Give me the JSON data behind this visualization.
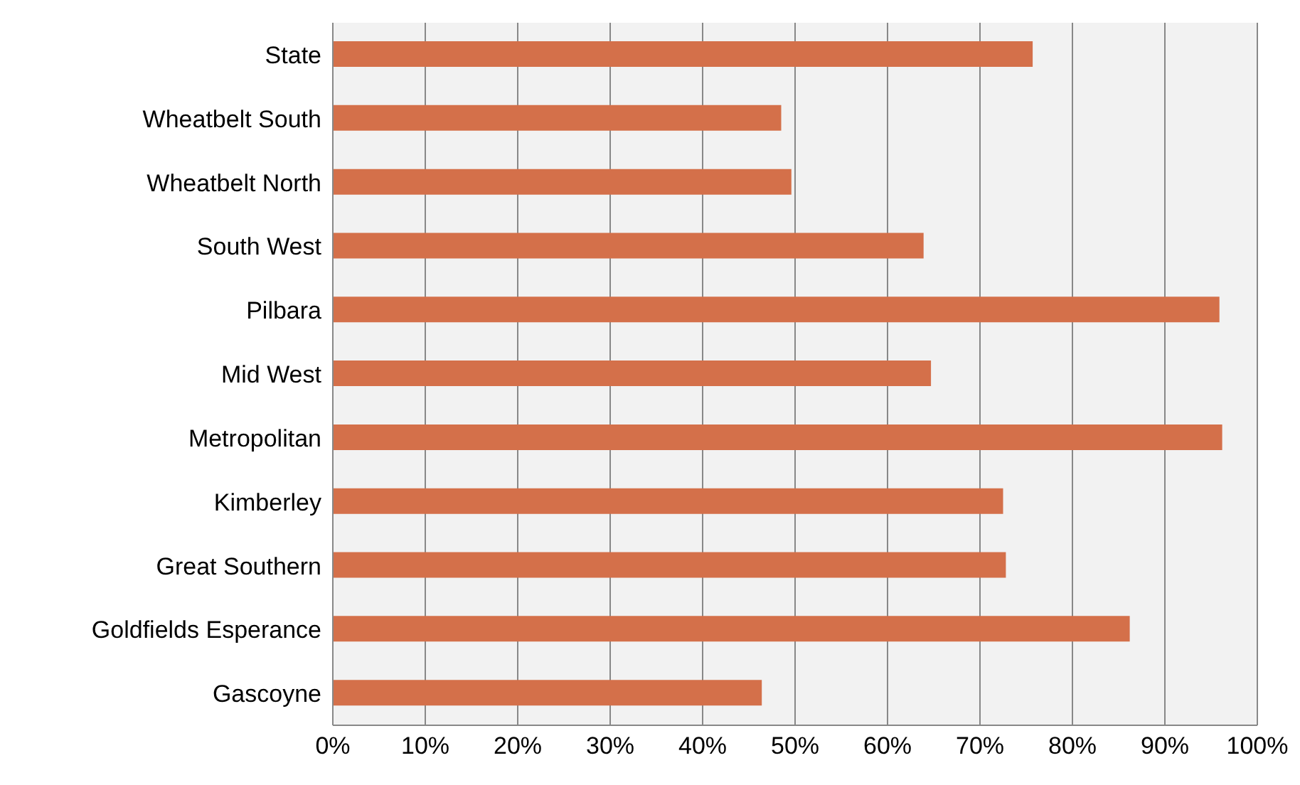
{
  "chart_data": {
    "type": "bar",
    "orientation": "horizontal",
    "categories": [
      "State",
      "Wheatbelt South",
      "Wheatbelt North",
      "South West",
      "Pilbara",
      "Mid West",
      "Metropolitan",
      "Kimberley",
      "Great Southern",
      "Goldfields Esperance",
      "Gascoyne"
    ],
    "values": [
      75.7,
      48.5,
      49.6,
      63.9,
      95.9,
      64.7,
      96.2,
      72.5,
      72.8,
      86.2,
      46.4
    ],
    "color": "#d4704a",
    "xlim": [
      0,
      100
    ],
    "xticks": [
      {
        "value": 0,
        "label": "0%"
      },
      {
        "value": 10,
        "label": "10%"
      },
      {
        "value": 20,
        "label": "20%"
      },
      {
        "value": 30,
        "label": "30%"
      },
      {
        "value": 40,
        "label": "40%"
      },
      {
        "value": 50,
        "label": "50%"
      },
      {
        "value": 60,
        "label": "60%"
      },
      {
        "value": 70,
        "label": "70%"
      },
      {
        "value": 80,
        "label": "80%"
      },
      {
        "value": 90,
        "label": "90%"
      },
      {
        "value": 100,
        "label": "100%"
      }
    ],
    "grid": "x"
  }
}
